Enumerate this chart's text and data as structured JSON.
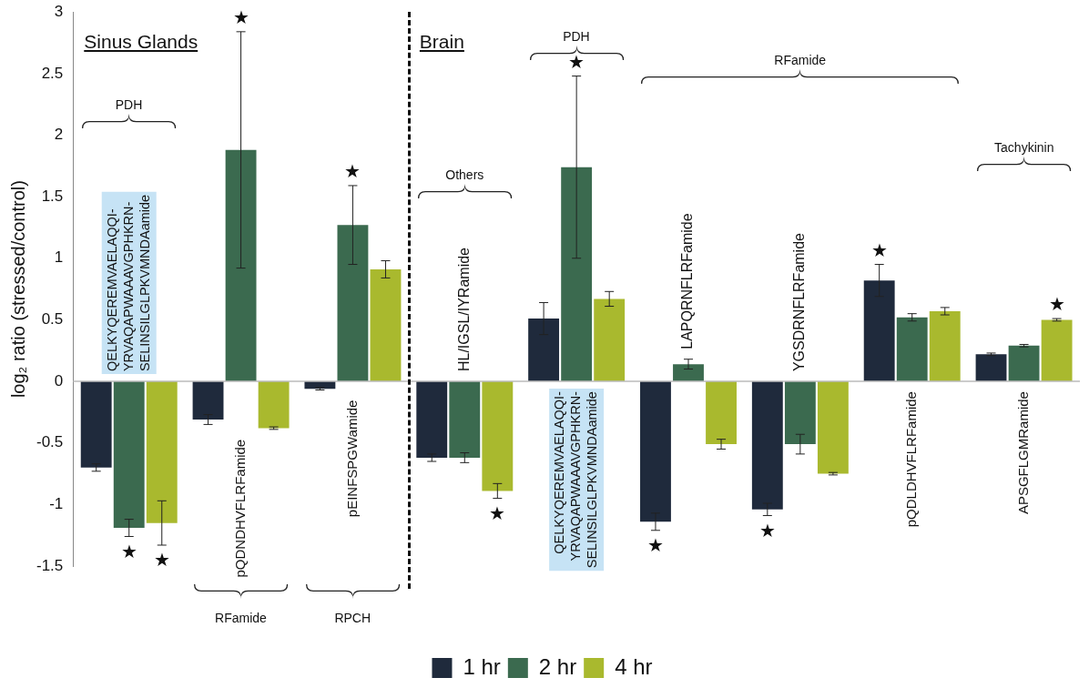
{
  "chart_data": {
    "type": "bar",
    "ylabel": "log₂ ratio (stressed/control)",
    "categories": [
      "QELKYQEREMVAELAQQI-YRVAQAPWAAAVGPHKRN-SELINSILGLPKVMNDAamide",
      "pQDNDHVFLRFamide",
      "pEINFSPGWamide",
      "HL/IGSL/IYRamide",
      "QELKYQEREMVAELAQQI-YRVAQAPWAAAVGPHKRN-SELINSILGLPKVMNDAamide",
      "LAPQRNFLRFamide",
      "YGSDRNFLRFamide",
      "pQDLDHVFLRFamide",
      "APSGFLGMRamide"
    ],
    "series": [
      {
        "name": "1 hr",
        "color": "#1f2a3c",
        "values": [
          -0.7,
          -0.31,
          -0.06,
          -0.62,
          0.51,
          -1.14,
          -1.04,
          0.82,
          0.22
        ],
        "errors": [
          0.03,
          0.04,
          0.01,
          0.03,
          0.13,
          0.07,
          0.05,
          0.13,
          0.01
        ]
      },
      {
        "name": "2 hr",
        "color": "#3b6a4f",
        "values": [
          -1.19,
          1.88,
          1.27,
          -0.62,
          1.74,
          0.14,
          -0.51,
          0.52,
          0.29
        ],
        "errors": [
          0.07,
          0.96,
          0.32,
          0.04,
          0.74,
          0.04,
          0.08,
          0.03,
          0.01
        ]
      },
      {
        "name": "4 hr",
        "color": "#a9b92e",
        "values": [
          -1.15,
          -0.38,
          0.91,
          -0.89,
          0.67,
          -0.51,
          -0.75,
          0.57,
          0.5
        ],
        "errors": [
          0.18,
          0.01,
          0.07,
          0.06,
          0.06,
          0.04,
          0.01,
          0.03,
          0.01
        ]
      }
    ],
    "ylim": [
      -1.5,
      3
    ],
    "yticks": [
      -1.5,
      -1,
      -0.5,
      0,
      0.5,
      1,
      1.5,
      2,
      2.5,
      3
    ],
    "grid": false,
    "legend": "bottom",
    "tick_labels": "y",
    "annotations": [
      "Sinus Glands",
      "Brain",
      "PDH",
      "RFamide",
      "RPCH",
      "Others",
      "PDH",
      "RFamide",
      "Tachykinin",
      "★",
      "★",
      "★",
      "★",
      "★",
      "★",
      "★",
      "★",
      "★",
      "★"
    ]
  }
}
